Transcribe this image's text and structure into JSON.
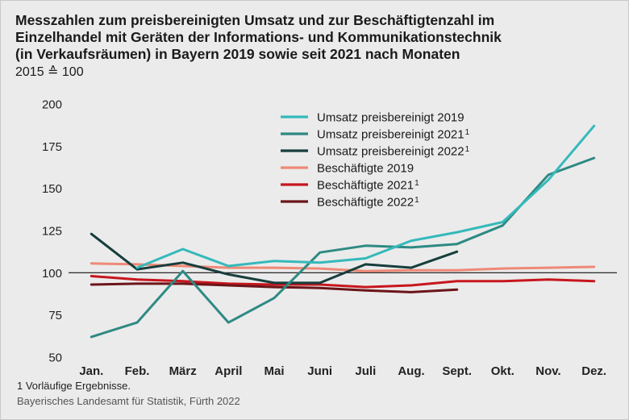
{
  "header": {
    "title_lines": [
      "Messzahlen zum preisbereinigten Umsatz und zur Beschäftigtenzahl im",
      "Einzelhandel mit Geräten der Informations- und Kommunikationstechnik",
      "(in Verkaufsräumen) in Bayern 2019 sowie seit 2021 nach Monaten"
    ],
    "subtitle": "2015 ≙ 100"
  },
  "footer": {
    "footnote": "1  Vorläufige Ergebnisse.",
    "source": "Bayerisches Landesamt für Statistik, Fürth 2022"
  },
  "chart_data": {
    "type": "line",
    "title": "Messzahlen zum preisbereinigten Umsatz und zur Beschäftigtenzahl im Einzelhandel mit Geräten der Informations- und Kommunikationstechnik (in Verkaufsräumen) in Bayern 2019 sowie seit 2021 nach Monaten",
    "subtitle": "2015 ≙ 100",
    "categories": [
      "Jan.",
      "Feb.",
      "März",
      "April",
      "Mai",
      "Juni",
      "Juli",
      "Aug.",
      "Sept.",
      "Okt.",
      "Nov.",
      "Dez."
    ],
    "ylim": [
      50,
      200
    ],
    "yticks": [
      50,
      75,
      100,
      125,
      150,
      175,
      200
    ],
    "reference_line": 100,
    "grid": false,
    "legend_position": "top-right",
    "series": [
      {
        "name": "Umsatz preisbereinigt 2019",
        "footnote": "",
        "color": "#35b9bb",
        "values": [
          null,
          103,
          114,
          104,
          107,
          106,
          108.5,
          119,
          124,
          130,
          155,
          187
        ]
      },
      {
        "name": "Umsatz preisbereinigt 2021",
        "footnote": "1",
        "color": "#2e8a83",
        "values": [
          62,
          70.5,
          101,
          70.5,
          85,
          112,
          116,
          115,
          117,
          128,
          158,
          168
        ]
      },
      {
        "name": "Umsatz preisbereinigt 2022",
        "footnote": "1",
        "color": "#163e3c",
        "values": [
          123,
          102,
          106,
          99,
          94,
          94,
          105,
          103,
          112.5,
          null,
          null,
          null
        ]
      },
      {
        "name": "Beschäftigte 2019",
        "footnote": "",
        "color": "#ee8977",
        "values": [
          105.5,
          105,
          104,
          103,
          103,
          102.5,
          101,
          101.5,
          101.5,
          102.5,
          103,
          103.5
        ]
      },
      {
        "name": "Beschäftigte 2021",
        "footnote": "1",
        "color": "#c7161d",
        "values": [
          98,
          96,
          95,
          93.5,
          93,
          93,
          91.5,
          92.5,
          95,
          95,
          96,
          95
        ]
      },
      {
        "name": "Beschäftigte 2022",
        "footnote": "1",
        "color": "#6b1519",
        "values": [
          93,
          93.5,
          93.5,
          92.5,
          91.5,
          91,
          89.5,
          88.5,
          90,
          null,
          null,
          null
        ]
      }
    ]
  }
}
